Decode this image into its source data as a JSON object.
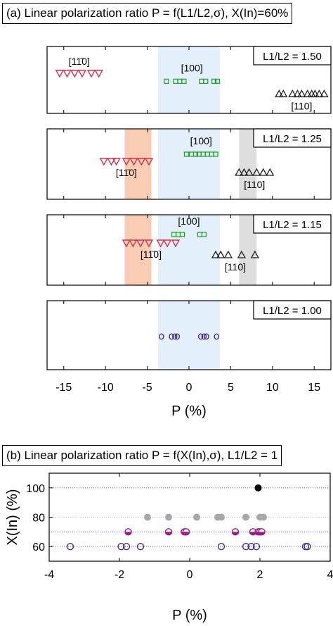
{
  "chart_data": [
    {
      "type": "scatter",
      "title": "(a) Linear polarization ratio P = f(L1/L2,σ), X(In)=60%",
      "xlabel": "P (%)",
      "xlim": [
        -17,
        17
      ],
      "xticks": [
        -15,
        -10,
        -5,
        0,
        5,
        10,
        15
      ],
      "legend_position": "top-right",
      "shaded_regions": [
        {
          "xrange": [
            -3.7,
            3.7
          ],
          "color": "#e3f0fc",
          "panels": [
            "L1/L2 = 1.50",
            "L1/L2 = 1.25",
            "L1/L2 = 1.15",
            "L1/L2 = 1.00"
          ]
        },
        {
          "xrange": [
            -7.7,
            -4.5
          ],
          "color": "#f9cdb4",
          "panels": [
            "L1/L2 = 1.25",
            "L1/L2 = 1.15"
          ]
        },
        {
          "xrange": [
            6.0,
            8.1
          ],
          "color": "#dedede",
          "panels": [
            "L1/L2 = 1.25",
            "L1/L2 = 1.15"
          ]
        }
      ],
      "panels": [
        {
          "label": "L1/L2 = 1.50",
          "series": [
            {
              "name": "[11̄0]",
              "marker": "triangle-down",
              "color": "#d2334a",
              "level": 0.6,
              "x": [
                -15.5,
                -14.6,
                -13.7,
                -12.8,
                -11.7,
                -10.8
              ]
            },
            {
              "name": "[100]",
              "marker": "square",
              "color": "#2ca02c",
              "level": 0.48,
              "x": [
                -2.7,
                -1.6,
                -1.1,
                -0.6,
                1.5,
                2.0,
                3.0,
                3.4
              ]
            },
            {
              "name": "[110]",
              "marker": "triangle-up",
              "color": "#222222",
              "level": 0.29,
              "x": [
                10.8,
                11.3,
                12.4,
                13.0,
                13.5,
                14.2,
                14.7,
                15.1,
                15.6,
                16.2
              ]
            }
          ]
        },
        {
          "label": "L1/L2 = 1.25",
          "series": [
            {
              "name": "[11̄0]",
              "marker": "triangle-down",
              "color": "#d2334a",
              "level": 0.54,
              "x": [
                -10.2,
                -9.3,
                -8.7,
                -7.5,
                -6.6,
                -5.7,
                -4.8
              ]
            },
            {
              "name": "[100]",
              "marker": "square",
              "color": "#2ca02c",
              "level": 0.64,
              "x": [
                -0.3,
                0.3,
                0.8,
                1.2,
                1.7,
                2.2,
                2.7,
                3.2
              ]
            },
            {
              "name": "[110]",
              "marker": "triangle-up",
              "color": "#222222",
              "level": 0.38,
              "x": [
                6.0,
                6.6,
                7.2,
                8.1,
                8.9,
                9.7
              ]
            }
          ]
        },
        {
          "label": "L1/L2 = 1.15",
          "series": [
            {
              "name": "[11̄0]",
              "marker": "triangle-down",
              "color": "#d2334a",
              "level": 0.6,
              "x": [
                -7.5,
                -6.7,
                -5.8,
                -4.8,
                -3.4,
                -2.6,
                -1.6
              ]
            },
            {
              "name": "[100]",
              "marker": "square",
              "color": "#2ca02c",
              "level": 0.72,
              "x": [
                -1.8,
                -1.3,
                -0.8,
                1.3,
                1.8
              ]
            },
            {
              "name": "[110]",
              "marker": "triangle-up",
              "color": "#222222",
              "level": 0.43,
              "x": [
                3.2,
                3.8,
                4.7,
                6.3,
                7.9
              ]
            }
          ]
        },
        {
          "label": "L1/L2 = 1.00",
          "series": [
            {
              "name": "",
              "marker": "circle",
              "color": "#3d1f8f",
              "level": 0.48,
              "x": [
                -3.3,
                -2.1,
                -1.7,
                -1.4,
                1.4,
                1.8,
                2.1,
                3.3
              ]
            }
          ]
        }
      ]
    },
    {
      "type": "scatter",
      "title": "(b) Linear polarization ratio P = f(X(In),σ), L1/L2 = 1",
      "xlabel": "P (%)",
      "ylabel": "X(In) (%)",
      "xlim": [
        -4,
        4
      ],
      "ylim": [
        50,
        110
      ],
      "xticks": [
        -4,
        -2,
        0,
        2,
        4
      ],
      "yticks": [
        60,
        80,
        100
      ],
      "grid": "dotted horizontal at 60, 70, 80, 100",
      "series": [
        {
          "y": 100,
          "marker": "filled-circle",
          "color": "#000000",
          "x": [
            1.95
          ]
        },
        {
          "y": 80,
          "marker": "filled-circle",
          "color": "#a8a8a8",
          "x": [
            -1.2,
            -0.6,
            0.2,
            0.8,
            0.9,
            1.6,
            2.0,
            2.1
          ]
        },
        {
          "y": 70,
          "marker": "half-filled-circle",
          "color": "#9b1a8a",
          "x": [
            -1.75,
            -0.6,
            -0.15,
            -0.1,
            1.3,
            1.8,
            1.95,
            2.0,
            2.05
          ]
        },
        {
          "y": 60,
          "marker": "open-circle",
          "color": "#4030a0",
          "x": [
            -3.4,
            -1.95,
            -1.8,
            -1.4,
            0.9,
            1.6,
            1.75,
            1.9,
            3.3,
            3.35
          ]
        }
      ]
    }
  ]
}
